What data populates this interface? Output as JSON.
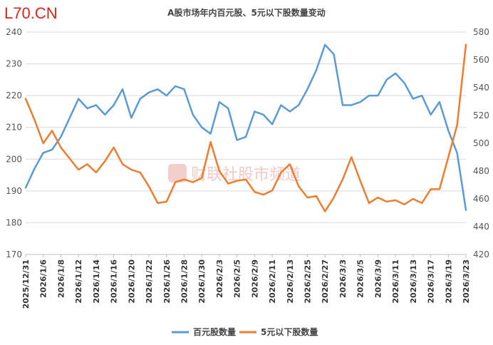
{
  "logo": "L70.CN",
  "watermark": "财联社股市频道",
  "chart_data": {
    "type": "line",
    "title": "A股市场年内百元股、5元以下股数量变动",
    "xlabel": "",
    "ylabel": "",
    "x": [
      "2025/12/31",
      "2026/1/5",
      "2026/1/6",
      "2026/1/7",
      "2026/1/8",
      "2026/1/9",
      "2026/1/12",
      "2026/1/13",
      "2026/1/14",
      "2026/1/15",
      "2026/1/16",
      "2026/1/19",
      "2026/1/20",
      "2026/1/21",
      "2026/1/22",
      "2026/1/23",
      "2026/1/26",
      "2026/1/27",
      "2026/1/28",
      "2026/1/29",
      "2026/1/30",
      "2026/2/2",
      "2026/2/3",
      "2026/2/4",
      "2026/2/5",
      "2026/2/6",
      "2026/2/9",
      "2026/2/10",
      "2026/2/11",
      "2026/2/12",
      "2026/2/13",
      "2026/2/24",
      "2026/2/25",
      "2026/2/26",
      "2026/2/27",
      "2026/3/2",
      "2026/3/3",
      "2026/3/4",
      "2026/3/5",
      "2026/3/6",
      "2026/3/9",
      "2026/3/10",
      "2026/3/11",
      "2026/3/12",
      "2026/3/13",
      "2026/3/16",
      "2026/3/17",
      "2026/3/18",
      "2026/3/19",
      "2026/3/20",
      "2026/3/23"
    ],
    "x_tick_labels": [
      "2025/12/31",
      "2026/1/6",
      "2026/1/8",
      "2026/1/12",
      "2026/1/14",
      "2026/1/16",
      "2026/1/20",
      "2026/1/22",
      "2026/1/26",
      "2026/1/28",
      "2026/1/30",
      "2026/2/3",
      "2026/2/5",
      "2026/2/9",
      "2026/2/11",
      "2026/2/13",
      "2026/2/25",
      "2026/2/27",
      "2026/3/3",
      "2026/3/5",
      "2026/3/9",
      "2026/3/11",
      "2026/3/13",
      "2026/3/17",
      "2026/3/19",
      "2026/3/23"
    ],
    "left_ylim": [
      170,
      240
    ],
    "left_yticks": [
      "170",
      "180",
      "190",
      "200",
      "210",
      "220",
      "230",
      "240"
    ],
    "right_ylim": [
      420,
      580
    ],
    "right_yticks": [
      "420",
      "440",
      "460",
      "480",
      "500",
      "520",
      "540",
      "560",
      "580"
    ],
    "grid": true,
    "legend_position": "bottom",
    "series": [
      {
        "name": "百元股数量",
        "axis": "left",
        "color": "#5b9bd5",
        "values": [
          191,
          197,
          202,
          203,
          207,
          213,
          219,
          216,
          217,
          214,
          217,
          222,
          213,
          219,
          221,
          222,
          220,
          223,
          222,
          214,
          210,
          208,
          218,
          216,
          206,
          207,
          215,
          214,
          211,
          217,
          215,
          217,
          222,
          228,
          236,
          233,
          217,
          217,
          218,
          220,
          220,
          225,
          227,
          224,
          219,
          220,
          214,
          218,
          209,
          202,
          184
        ]
      },
      {
        "name": "5元以下股数量",
        "axis": "right",
        "color": "#ed7d31",
        "values": [
          532,
          517,
          500,
          509,
          497,
          489,
          481,
          485,
          479,
          487,
          497,
          485,
          481,
          479,
          469,
          457,
          458,
          472,
          474,
          472,
          475,
          501,
          480,
          471,
          473,
          474,
          465,
          463,
          466,
          479,
          485,
          469,
          461,
          462,
          451,
          461,
          474,
          490,
          473,
          457,
          461,
          458,
          459,
          456,
          460,
          457,
          467,
          467,
          490,
          513,
          571
        ]
      }
    ]
  }
}
